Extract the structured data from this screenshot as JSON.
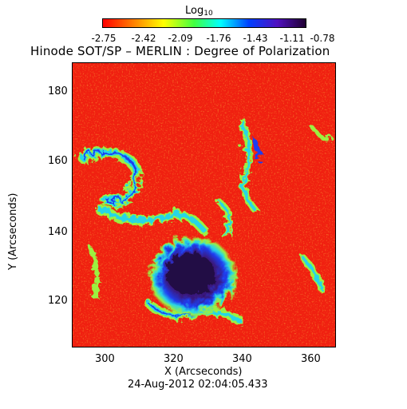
{
  "colorbar": {
    "label_main": "Log",
    "label_sub": "10",
    "ticks": [
      "-2.75",
      "-2.42",
      "-2.09",
      "-1.76",
      "-1.43",
      "-1.11",
      "-0.78"
    ]
  },
  "title": "Hinode SOT/SP – MERLIN : Degree of Polarization",
  "axes": {
    "x_label": "X (Arcseconds)",
    "y_label": "Y (Arcseconds)",
    "x_ticks": [
      "300",
      "320",
      "340",
      "360"
    ],
    "y_ticks": [
      "180",
      "160",
      "140",
      "120"
    ]
  },
  "timestamp": "24-Aug-2012 02:04:05.433",
  "colors": {
    "background_red": "#f02010",
    "orange": "#f27a16",
    "yellow_green": "#9cf040",
    "cyan": "#28d6e6",
    "blue": "#1f3df0",
    "umbra": "#2a0a55"
  }
}
